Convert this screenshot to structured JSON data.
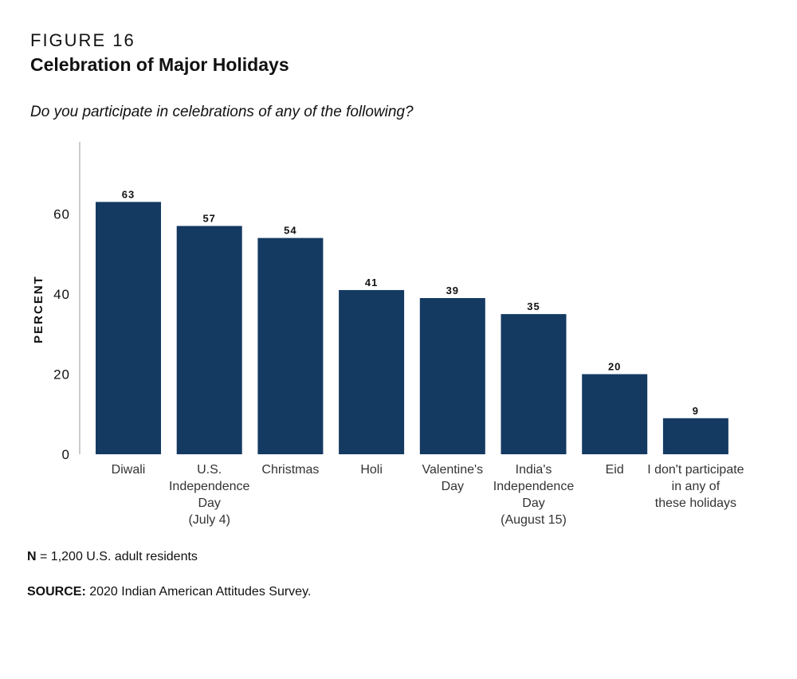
{
  "figure_label": "FIGURE 16",
  "title": "Celebration of Major Holidays",
  "question": "Do you participate in celebrations of any of the following?",
  "colors": {
    "bar": "#143a62",
    "axis": "#999999",
    "text": "#111111"
  },
  "chart_data": {
    "type": "bar",
    "categories": [
      [
        "Diwali"
      ],
      [
        "U.S.",
        "Independence",
        "Day",
        "(July 4)"
      ],
      [
        "Christmas"
      ],
      [
        "Holi"
      ],
      [
        "Valentine's",
        "Day"
      ],
      [
        "India's",
        "Independence",
        "Day",
        "(August 15)"
      ],
      [
        "Eid"
      ],
      [
        "I don't participate",
        "in any of",
        "these holidays"
      ]
    ],
    "values": [
      63,
      57,
      54,
      41,
      39,
      35,
      20,
      9
    ],
    "data_labels": [
      "63",
      "57",
      "54",
      "41",
      "39",
      "35",
      "20",
      "9"
    ],
    "ylabel": "PERCENT",
    "yticks": [
      "0",
      "20",
      "40",
      "60"
    ],
    "ytick_values": [
      0,
      20,
      40,
      60
    ],
    "ylim": [
      0,
      78
    ],
    "grid": false,
    "legend": "none"
  },
  "footnotes": {
    "n_label": "N",
    "n_text": " = 1,200 U.S. adult residents",
    "source_label": "SOURCE:",
    "source_text": " 2020 Indian American Attitudes Survey."
  }
}
